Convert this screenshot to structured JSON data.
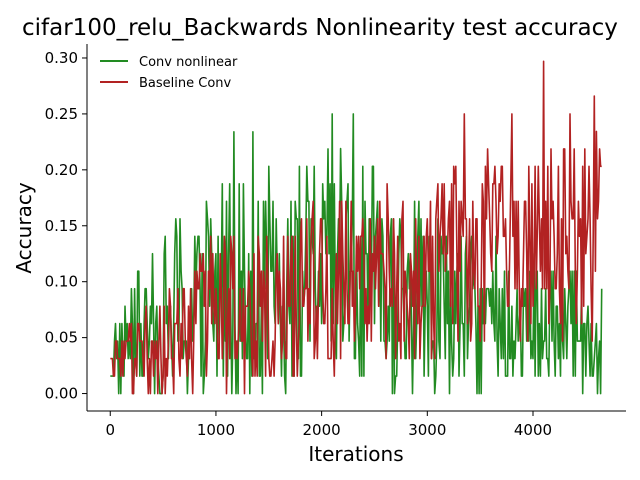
{
  "chart_data": {
    "type": "line",
    "title": "cifar100_relu_Backwards Nonlinearity test accuracy",
    "xlabel": "Iterations",
    "ylabel": "Accuracy",
    "xlim": [
      -220,
      4880
    ],
    "ylim": [
      -0.0156,
      0.3125
    ],
    "xticks": [
      0,
      1000,
      2000,
      3000,
      4000
    ],
    "yticks": [
      0.0,
      0.05,
      0.1,
      0.15,
      0.2,
      0.25,
      0.3
    ],
    "xtick_labels": [
      "0",
      "1000",
      "2000",
      "3000",
      "4000"
    ],
    "ytick_labels": [
      "0.00",
      "0.05",
      "0.10",
      "0.15",
      "0.20",
      "0.25",
      "0.30"
    ],
    "grid": false,
    "legend_position": "top-left",
    "step": 0.015625,
    "series": [
      {
        "name": "Conv nonlinear",
        "color": "#228b22",
        "trend": [
          {
            "x": 0,
            "low": 0.0,
            "high": 0.078,
            "mean": 0.03
          },
          {
            "x": 500,
            "low": 0.0,
            "high": 0.141,
            "mean": 0.055
          },
          {
            "x": 1000,
            "low": 0.0,
            "high": 0.219,
            "mean": 0.075
          },
          {
            "x": 1500,
            "low": 0.0,
            "high": 0.203,
            "mean": 0.085
          },
          {
            "x": 2000,
            "low": 0.016,
            "high": 0.219,
            "mean": 0.09
          },
          {
            "x": 2500,
            "low": 0.0,
            "high": 0.203,
            "mean": 0.085
          },
          {
            "x": 3000,
            "low": 0.0,
            "high": 0.172,
            "mean": 0.075
          },
          {
            "x": 3500,
            "low": 0.0,
            "high": 0.141,
            "mean": 0.065
          },
          {
            "x": 4000,
            "low": 0.0,
            "high": 0.125,
            "mean": 0.06
          },
          {
            "x": 4650,
            "low": 0.0,
            "high": 0.109,
            "mean": 0.055
          }
        ],
        "peaks": [
          {
            "x": 1170,
            "y": 0.234
          },
          {
            "x": 1350,
            "y": 0.234
          },
          {
            "x": 2100,
            "y": 0.25
          },
          {
            "x": 2300,
            "y": 0.25
          },
          {
            "x": 2180,
            "y": 0.219
          }
        ]
      },
      {
        "name": "Baseline Conv",
        "color": "#b22222",
        "trend": [
          {
            "x": 0,
            "low": 0.0,
            "high": 0.063,
            "mean": 0.025
          },
          {
            "x": 500,
            "low": 0.0,
            "high": 0.094,
            "mean": 0.045
          },
          {
            "x": 1000,
            "low": 0.0,
            "high": 0.141,
            "mean": 0.065
          },
          {
            "x": 1500,
            "low": 0.0,
            "high": 0.156,
            "mean": 0.08
          },
          {
            "x": 2000,
            "low": 0.016,
            "high": 0.172,
            "mean": 0.095
          },
          {
            "x": 2500,
            "low": 0.016,
            "high": 0.188,
            "mean": 0.105
          },
          {
            "x": 3000,
            "low": 0.031,
            "high": 0.203,
            "mean": 0.115
          },
          {
            "x": 3500,
            "low": 0.031,
            "high": 0.219,
            "mean": 0.125
          },
          {
            "x": 4000,
            "low": 0.047,
            "high": 0.234,
            "mean": 0.135
          },
          {
            "x": 4650,
            "low": 0.047,
            "high": 0.25,
            "mean": 0.14
          }
        ],
        "peaks": [
          {
            "x": 4100,
            "y": 0.297
          },
          {
            "x": 4580,
            "y": 0.266
          },
          {
            "x": 3350,
            "y": 0.25
          },
          {
            "x": 3800,
            "y": 0.25
          },
          {
            "x": 4350,
            "y": 0.25
          }
        ]
      }
    ],
    "x_max": 4650,
    "x_step": 10
  }
}
